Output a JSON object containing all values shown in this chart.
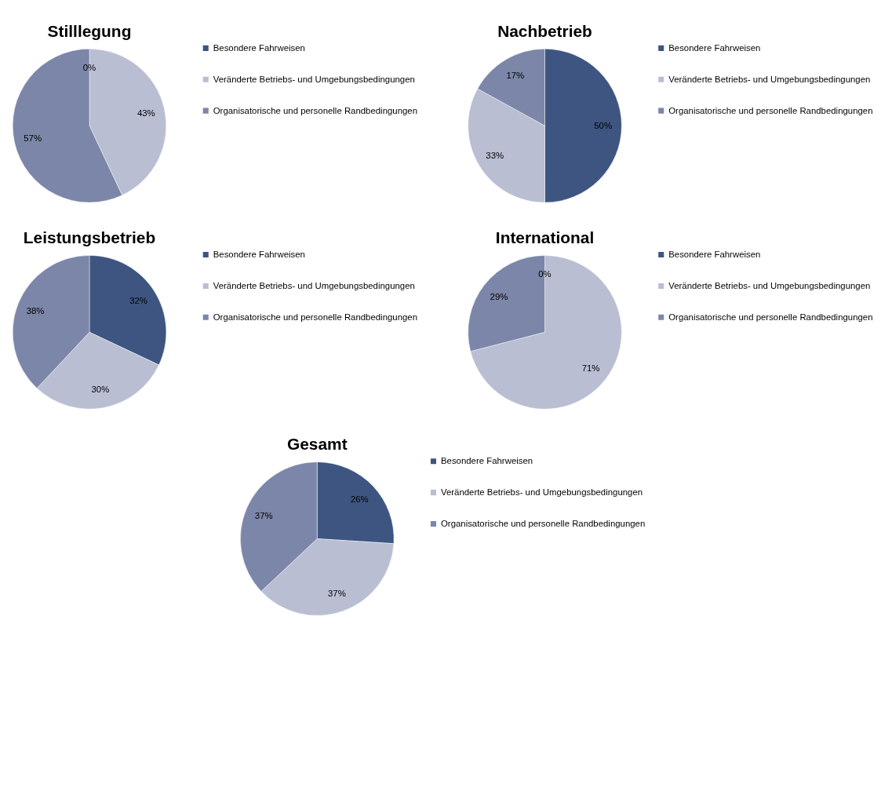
{
  "chart_data": [
    {
      "type": "pie",
      "title": "Stilllegung",
      "categories": [
        "Besondere Fahrweisen",
        "Veränderte Betriebs- und Umgebungsbedingungen",
        "Organisatorische und personelle Randbedingungen"
      ],
      "values": [
        0,
        43,
        57
      ],
      "colors": [
        "#3d5580",
        "#b9bed3",
        "#7b86a8"
      ],
      "value_labels": [
        "0%",
        "43%",
        "57%"
      ],
      "legend": "right"
    },
    {
      "type": "pie",
      "title": "Nachbetrieb",
      "categories": [
        "Besondere Fahrweisen",
        "Veränderte Betriebs- und Umgebungsbedingungen",
        "Organisatorische und personelle Randbedingungen"
      ],
      "values": [
        50,
        33,
        17
      ],
      "colors": [
        "#3d5580",
        "#b9bed3",
        "#7b86a8"
      ],
      "value_labels": [
        "50%",
        "33%",
        "17%"
      ],
      "legend": "right"
    },
    {
      "type": "pie",
      "title": "Leistungsbetrieb",
      "categories": [
        "Besondere Fahrweisen",
        "Veränderte Betriebs- und Umgebungsbedingungen",
        "Organisatorische und personelle Randbedingungen"
      ],
      "values": [
        32,
        30,
        38
      ],
      "colors": [
        "#3d5580",
        "#b9bed3",
        "#7b86a8"
      ],
      "value_labels": [
        "32%",
        "30%",
        "38%"
      ],
      "legend": "right"
    },
    {
      "type": "pie",
      "title": "International",
      "categories": [
        "Besondere Fahrweisen",
        "Veränderte Betriebs- und Umgebungsbedingungen",
        "Organisatorische und personelle Randbedingungen"
      ],
      "values": [
        0,
        71,
        29
      ],
      "colors": [
        "#3d5580",
        "#b9bed3",
        "#7b86a8"
      ],
      "value_labels": [
        "0%",
        "71%",
        "29%"
      ],
      "legend": "right"
    },
    {
      "type": "pie",
      "title": "Gesamt",
      "categories": [
        "Besondere Fahrweisen",
        "Veränderte Betriebs- und Umgebungsbedingungen",
        "Organisatorische und personelle Randbedingungen"
      ],
      "values": [
        26,
        37,
        37
      ],
      "colors": [
        "#3d5580",
        "#b9bed3",
        "#7b86a8"
      ],
      "value_labels": [
        "26%",
        "37%",
        "37%"
      ],
      "legend": "right"
    }
  ]
}
